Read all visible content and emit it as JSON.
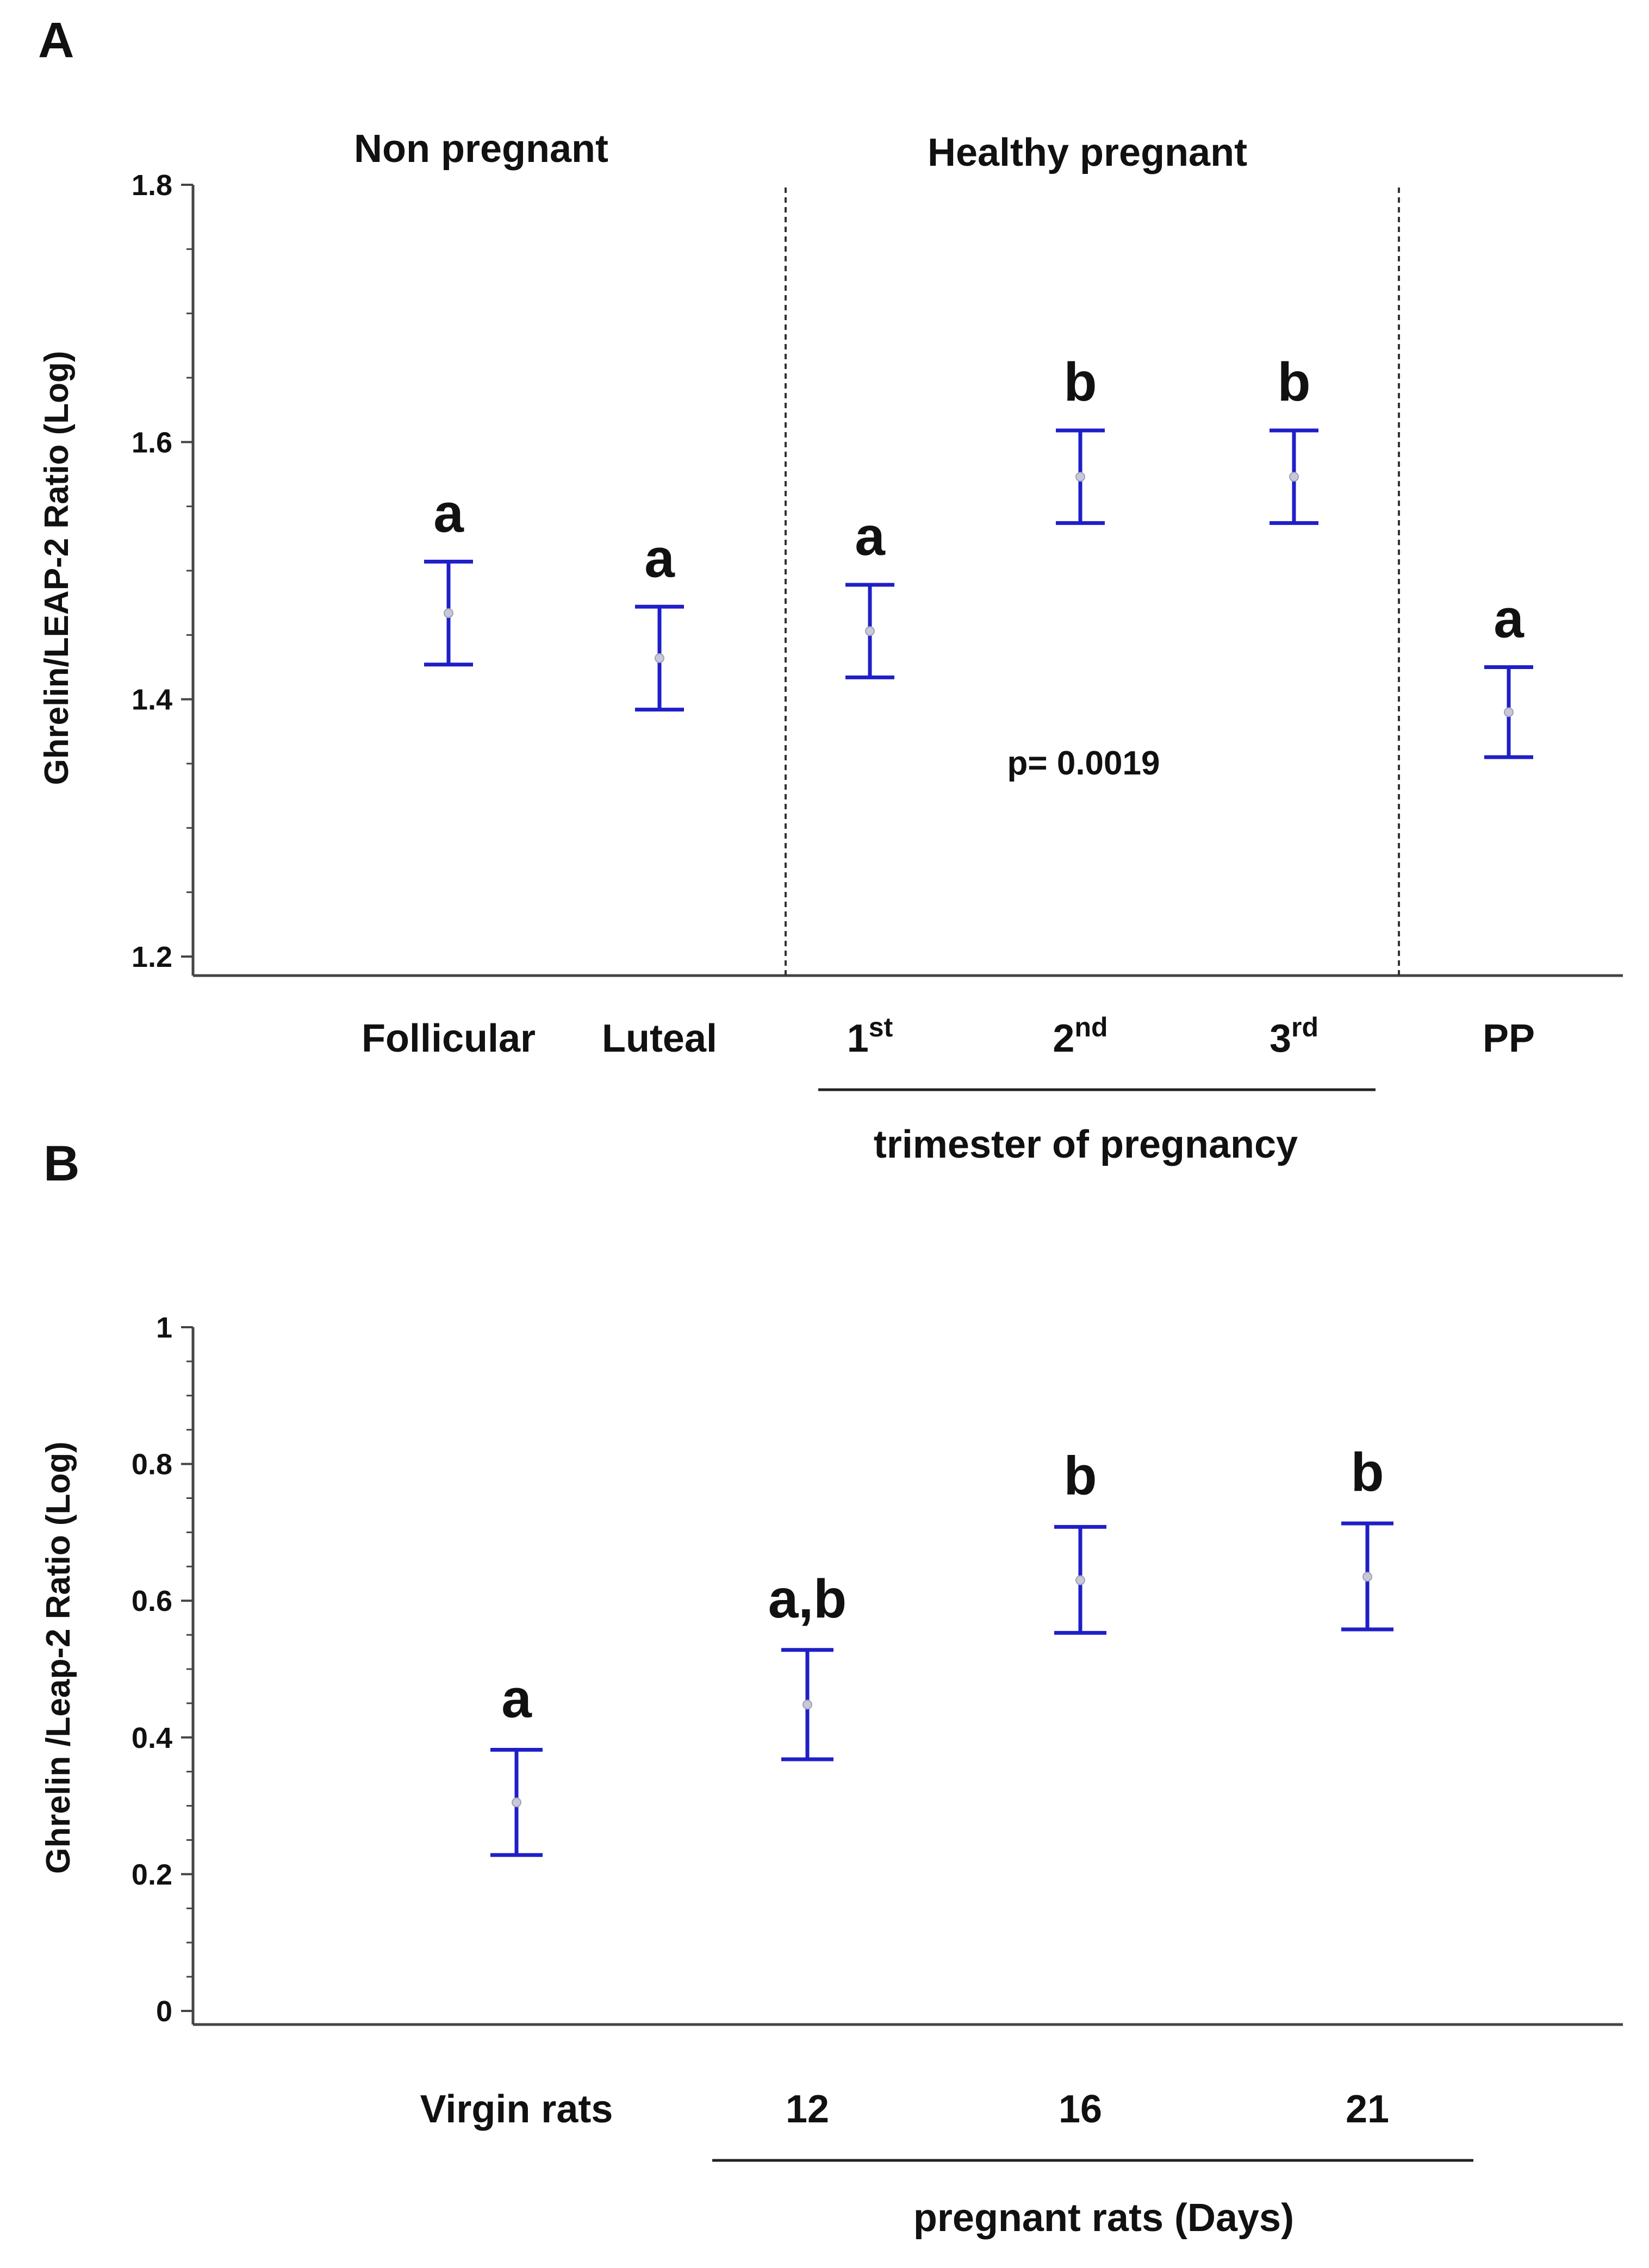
{
  "chart_data": [
    {
      "type": "errorbar",
      "panel": "A",
      "ylabel": "Ghrelin/LEAP-2 Ratio (Log)",
      "ylim": [
        1.2,
        1.8
      ],
      "yticks": [
        "1.2",
        "1.4",
        "1.6",
        "1.8"
      ],
      "regions": [
        "Non pregnant",
        "Healthy pregnant"
      ],
      "categories": [
        "Follicular",
        "Luteal",
        "1st",
        "2nd",
        "3rd",
        "PP"
      ],
      "category_parts": [
        {
          "main": "Follicular",
          "sup": ""
        },
        {
          "main": "Luteal",
          "sup": ""
        },
        {
          "main": "1",
          "sup": "st"
        },
        {
          "main": "2",
          "sup": "nd"
        },
        {
          "main": "3",
          "sup": "rd"
        },
        {
          "main": "PP",
          "sup": ""
        }
      ],
      "mean": [
        1.467,
        1.432,
        1.453,
        1.573,
        1.573,
        1.39
      ],
      "lower": [
        1.427,
        1.392,
        1.417,
        1.537,
        1.537,
        1.355
      ],
      "upper": [
        1.507,
        1.472,
        1.489,
        1.609,
        1.609,
        1.425
      ],
      "letters": [
        "a",
        "a",
        "a",
        "b",
        "b",
        "a"
      ],
      "group_label": "trimester of pregnancy",
      "annotation": "p= 0.0019",
      "series_color": "#1f1fc8"
    },
    {
      "type": "errorbar",
      "panel": "B",
      "ylabel": "Ghrelin /Leap-2 Ratio (Log)",
      "ylim": [
        0,
        1
      ],
      "yticks": [
        "0",
        "0.2",
        "0.4",
        "0.6",
        "0.8",
        "1"
      ],
      "categories": [
        "Virgin rats",
        "12",
        "16",
        "21"
      ],
      "mean": [
        0.305,
        0.448,
        0.63,
        0.635
      ],
      "lower": [
        0.228,
        0.368,
        0.553,
        0.558
      ],
      "upper": [
        0.382,
        0.528,
        0.708,
        0.713
      ],
      "letters": [
        "a",
        "a,b",
        "b",
        "b"
      ],
      "group_label": "pregnant rats (Days)",
      "series_color": "#1f1fc8"
    }
  ]
}
